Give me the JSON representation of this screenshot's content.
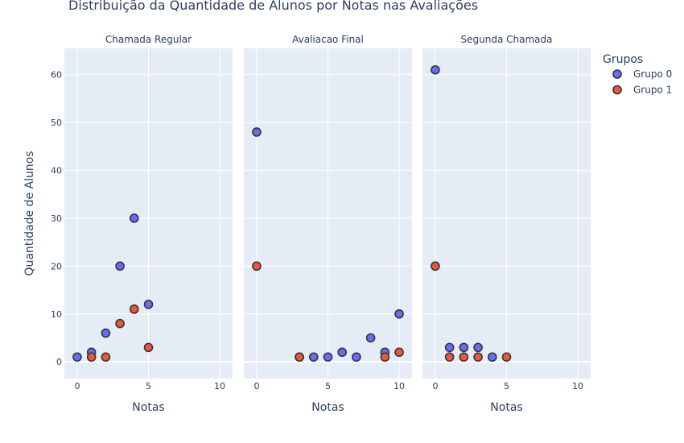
{
  "chart_data": {
    "type": "scatter",
    "title": "Distribuição da Quantidade de Alunos por Notas nas Avaliações",
    "ylabel": "Quantidade de Alunos",
    "xlabel": "Notas",
    "legend_title": "Grupos",
    "legend_position": "top-right",
    "grid": true,
    "xlim": [
      -0.9,
      10.9
    ],
    "ylim": [
      -3.5,
      65.5
    ],
    "x_ticks": [
      0,
      5,
      10
    ],
    "y_ticks": [
      0,
      10,
      20,
      30,
      40,
      50,
      60
    ],
    "colors": {
      "panel_bg": "#E5ECF6",
      "grid": "#FFFFFF",
      "text": "#2A3F5F"
    },
    "series_styles": [
      {
        "name": "Grupo 0",
        "color": "#636EFA"
      },
      {
        "name": "Grupo 1",
        "color": "#EF553B"
      }
    ],
    "panels": [
      {
        "title": "Chamada Regular",
        "series": [
          {
            "name": "Grupo 0",
            "x": [
              0,
              1,
              2,
              3,
              4,
              5
            ],
            "y": [
              1,
              2,
              6,
              20,
              30,
              12
            ]
          },
          {
            "name": "Grupo 1",
            "x": [
              1,
              2,
              3,
              4,
              5
            ],
            "y": [
              1,
              1,
              8,
              11,
              3
            ]
          }
        ]
      },
      {
        "title": "Avaliacao Final",
        "series": [
          {
            "name": "Grupo 0",
            "x": [
              0,
              3,
              4,
              5,
              6,
              7,
              8,
              9,
              10
            ],
            "y": [
              48,
              1,
              1,
              1,
              2,
              1,
              5,
              2,
              10
            ]
          },
          {
            "name": "Grupo 1",
            "x": [
              0,
              3,
              9,
              10
            ],
            "y": [
              20,
              1,
              1,
              2
            ]
          }
        ]
      },
      {
        "title": "Segunda Chamada",
        "series": [
          {
            "name": "Grupo 0",
            "x": [
              0,
              1,
              2,
              3,
              4
            ],
            "y": [
              61,
              3,
              3,
              3,
              1
            ]
          },
          {
            "name": "Grupo 1",
            "x": [
              0,
              1,
              2,
              3,
              5
            ],
            "y": [
              20,
              1,
              1,
              1,
              1
            ]
          }
        ]
      }
    ]
  }
}
